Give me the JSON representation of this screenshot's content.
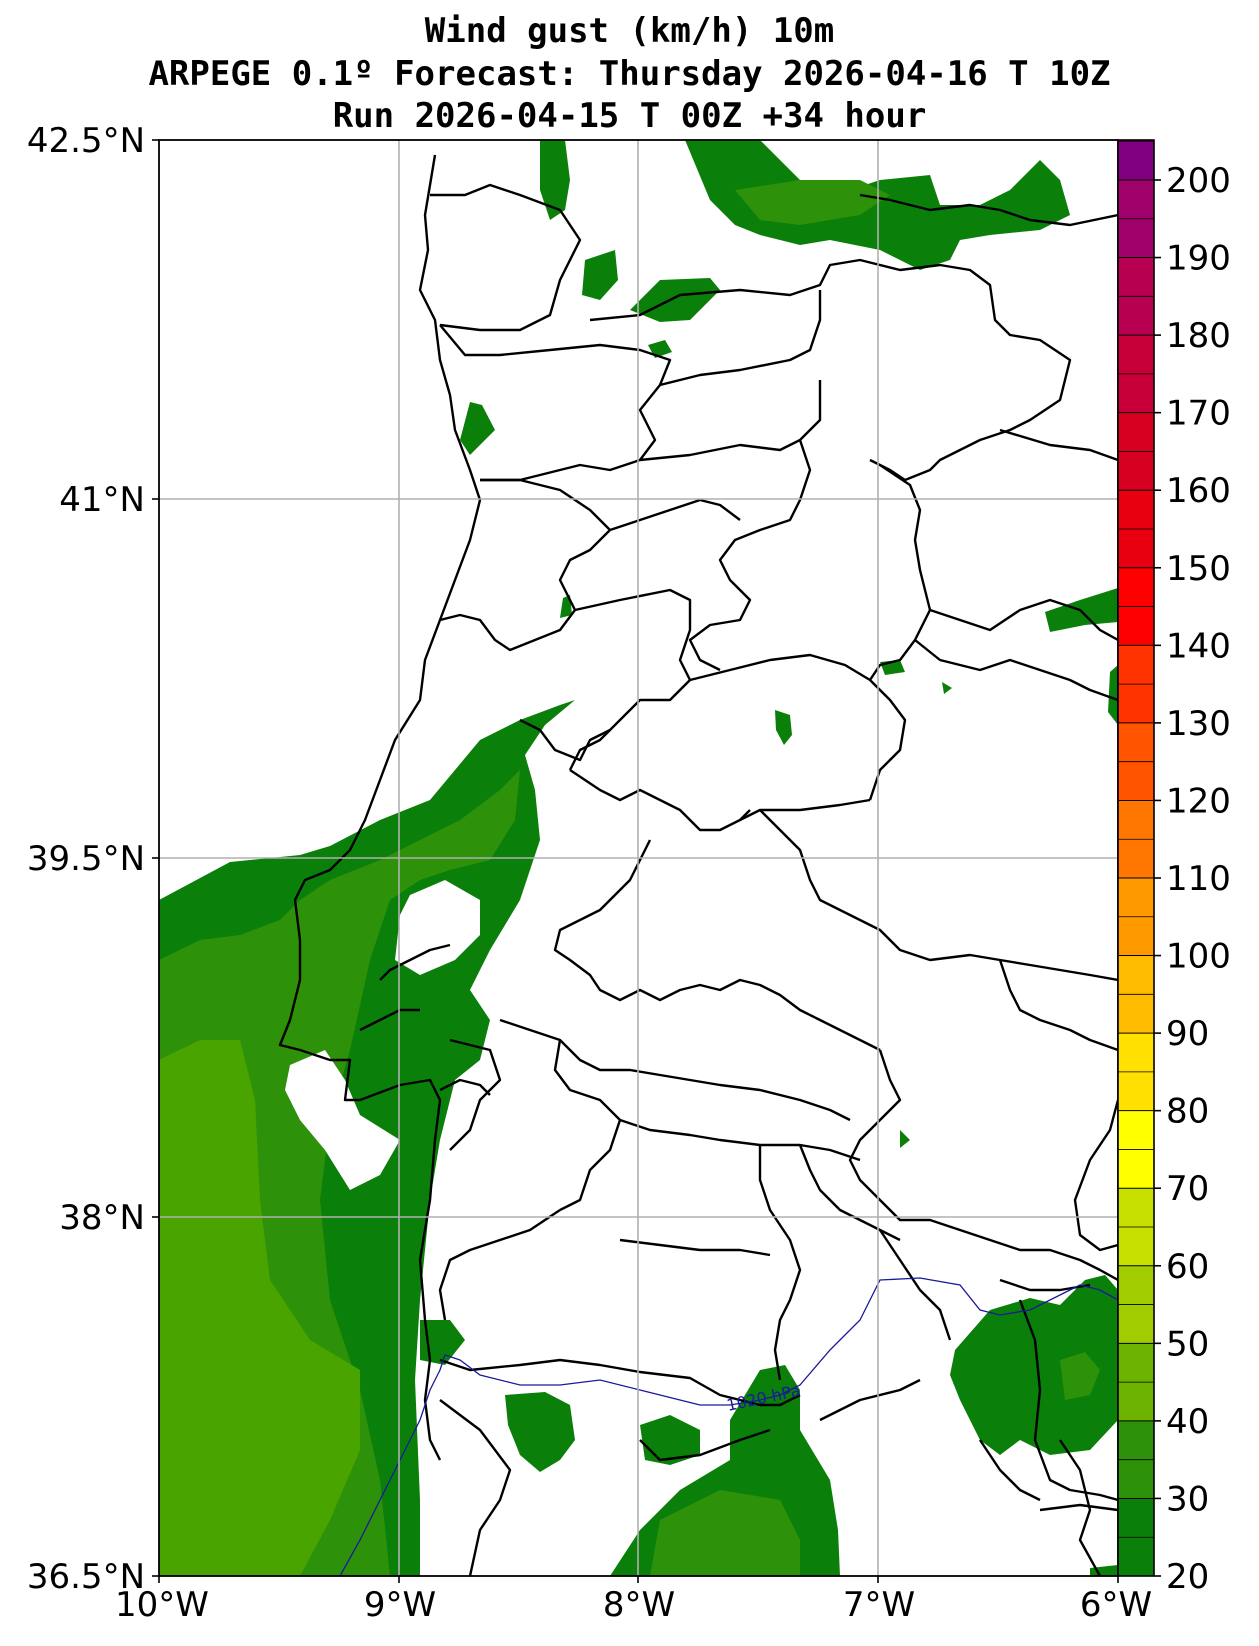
{
  "title": {
    "line1": "Wind gust (km/h) 10m",
    "line2": "ARPEGE 0.1º Forecast: Thursday 2026-04-16 T 10Z",
    "line3": "Run 2026-04-15 T 00Z +34 hour"
  },
  "map": {
    "lon_range": [
      -10,
      -6
    ],
    "lat_range": [
      36.5,
      42.5
    ],
    "lat_ticks": [
      "42.5°N",
      "41°N",
      "39.5°N",
      "38°N",
      "36.5°N"
    ],
    "lon_ticks": [
      "10°W",
      "9°W",
      "8°W",
      "7°W",
      "6°W"
    ],
    "gridlines": true,
    "isobar_label": "1020 hPa",
    "colors": {
      "gust_20_30": "#0a7f0a",
      "gust_30_40": "#2e910a",
      "gust_40_50": "#4aa400",
      "coastline": "#000000",
      "isobar": "#1a1a9a"
    }
  },
  "colorbar": {
    "ticks": [
      "200",
      "190",
      "180",
      "170",
      "160",
      "150",
      "140",
      "130",
      "120",
      "110",
      "100",
      "90",
      "80",
      "70",
      "60",
      "50",
      "40",
      "30",
      "20"
    ],
    "colors": [
      "#800080",
      "#a0006a",
      "#b80050",
      "#c8003a",
      "#d80020",
      "#e80010",
      "#ff0000",
      "#ff3300",
      "#ff5500",
      "#ff7700",
      "#ff9900",
      "#ffbb00",
      "#ffe000",
      "#ffff00",
      "#c8e000",
      "#a0cc00",
      "#6cb400",
      "#2e910a",
      "#0a7f0a"
    ]
  }
}
